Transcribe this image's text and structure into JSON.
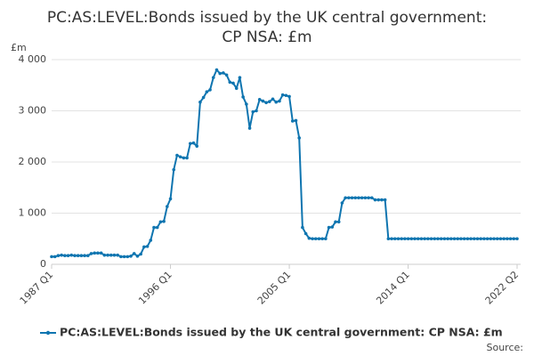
{
  "chart_data": {
    "type": "line",
    "title": [
      "PC:AS:LEVEL:Bonds issued by the UK central government:",
      "CP NSA: £m"
    ],
    "y_axis_label": "£m",
    "source": "Source:",
    "categories": [
      "1987 Q1",
      null,
      null,
      null,
      null,
      null,
      null,
      null,
      null,
      null,
      null,
      null,
      null,
      null,
      null,
      null,
      null,
      null,
      null,
      null,
      null,
      null,
      null,
      null,
      null,
      null,
      null,
      null,
      null,
      null,
      null,
      null,
      null,
      null,
      null,
      null,
      "1996 Q1",
      null,
      null,
      null,
      null,
      null,
      null,
      null,
      null,
      null,
      null,
      null,
      null,
      null,
      null,
      null,
      null,
      null,
      null,
      null,
      null,
      null,
      null,
      null,
      null,
      null,
      null,
      null,
      null,
      null,
      null,
      null,
      null,
      null,
      null,
      null,
      "2005 Q1",
      null,
      null,
      null,
      null,
      null,
      null,
      null,
      null,
      null,
      null,
      null,
      null,
      null,
      null,
      null,
      null,
      null,
      null,
      null,
      null,
      null,
      null,
      null,
      null,
      null,
      null,
      null,
      null,
      null,
      null,
      null,
      null,
      null,
      null,
      null,
      "2014 Q1",
      null,
      null,
      null,
      null,
      null,
      null,
      null,
      null,
      null,
      null,
      null,
      null,
      null,
      null,
      null,
      null,
      null,
      null,
      null,
      null,
      null,
      null,
      null,
      null,
      null,
      null,
      null,
      null,
      null,
      null,
      null,
      null,
      "2022 Q2"
    ],
    "series": [
      {
        "name": "PC:AS:LEVEL:Bonds issued by the UK central government: CP NSA: £m",
        "color": "#0f75b0",
        "values": [
          150,
          150,
          170,
          180,
          170,
          170,
          180,
          170,
          170,
          170,
          170,
          170,
          210,
          220,
          220,
          220,
          180,
          180,
          180,
          180,
          180,
          150,
          150,
          150,
          160,
          210,
          160,
          200,
          340,
          350,
          470,
          720,
          720,
          830,
          840,
          1130,
          1280,
          1850,
          2130,
          2100,
          2080,
          2080,
          2360,
          2370,
          2310,
          3170,
          3260,
          3370,
          3410,
          3650,
          3800,
          3730,
          3740,
          3700,
          3560,
          3540,
          3440,
          3650,
          3270,
          3130,
          2660,
          2980,
          3000,
          3220,
          3190,
          3160,
          3180,
          3230,
          3170,
          3190,
          3310,
          3300,
          3280,
          2800,
          2810,
          2470,
          720,
          600,
          510,
          500,
          500,
          500,
          500,
          500,
          720,
          730,
          830,
          830,
          1200,
          1300,
          1300,
          1300,
          1300,
          1300,
          1300,
          1300,
          1300,
          1300,
          1260,
          1260,
          1260,
          1260,
          500,
          500,
          500,
          500,
          500,
          500,
          500,
          500,
          500,
          500,
          500,
          500,
          500,
          500,
          500,
          500,
          500,
          500,
          500,
          500,
          500,
          500,
          500,
          500,
          500,
          500,
          500,
          500,
          500,
          500,
          500,
          500,
          500,
          500,
          500,
          500,
          500,
          500,
          500,
          500
        ]
      }
    ],
    "ylim": [
      0,
      4000
    ],
    "yticks": [
      0,
      {
        "value": 1000,
        "label": "1 000"
      },
      {
        "value": 2000,
        "label": "2 000"
      },
      {
        "value": 3000,
        "label": "3 000"
      },
      {
        "value": 4000,
        "label": "4 000"
      }
    ],
    "grid": true
  }
}
